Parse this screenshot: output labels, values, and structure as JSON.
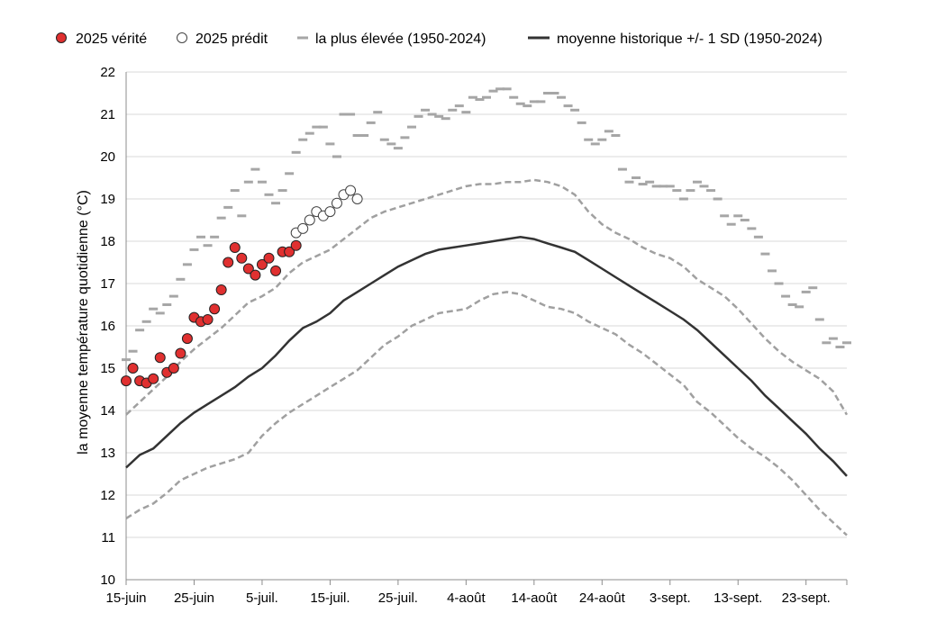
{
  "chart_data": {
    "type": "line",
    "title": "",
    "xlabel": "",
    "ylabel": "la moyenne température quotidienne (°C)",
    "ylim": [
      10,
      22
    ],
    "yticks": [
      10,
      11,
      12,
      13,
      14,
      15,
      16,
      17,
      18,
      19,
      20,
      21,
      22
    ],
    "x_range_days": [
      0,
      106
    ],
    "x_ticks": [
      {
        "day": 0,
        "label": "15-juin"
      },
      {
        "day": 10,
        "label": "25-juin"
      },
      {
        "day": 20,
        "label": "5-juil."
      },
      {
        "day": 30,
        "label": "15-juil."
      },
      {
        "day": 40,
        "label": "25-juil."
      },
      {
        "day": 50,
        "label": "4-août"
      },
      {
        "day": 60,
        "label": "14-août"
      },
      {
        "day": 70,
        "label": "24-août"
      },
      {
        "day": 80,
        "label": "3-sept."
      },
      {
        "day": 90,
        "label": "13-sept."
      },
      {
        "day": 100,
        "label": "23-sept."
      }
    ],
    "legend": [
      {
        "key": "truth",
        "label": "2025 vérité"
      },
      {
        "key": "predicted",
        "label": "2025 prédit"
      },
      {
        "key": "highest",
        "label": "la plus élevée (1950-2024)"
      },
      {
        "key": "mean",
        "label": "moyenne historique +/- 1 SD (1950-2024)"
      }
    ],
    "colors": {
      "truth": "#e03030",
      "mean": "#333333",
      "band": "#a0a0a0",
      "highest": "#a6a6a6",
      "grid": "#d9d9d9"
    },
    "series": {
      "truth": {
        "days": [
          0,
          1,
          2,
          3,
          4,
          5,
          6,
          7,
          8,
          9,
          10,
          11,
          12,
          13,
          14,
          15,
          16,
          17,
          18,
          19,
          20,
          21,
          22,
          23,
          24,
          25
        ],
        "values": [
          14.7,
          15.0,
          14.7,
          14.65,
          14.75,
          15.25,
          14.9,
          15.0,
          15.35,
          15.7,
          16.2,
          16.1,
          16.15,
          16.4,
          16.85,
          17.5,
          17.85,
          17.6,
          17.35,
          17.2,
          17.45,
          17.6,
          17.3,
          17.75,
          17.75,
          17.9
        ]
      },
      "predicted": {
        "days": [
          25,
          26,
          27,
          28,
          29,
          30,
          31,
          32,
          33,
          34
        ],
        "values": [
          18.2,
          18.3,
          18.5,
          18.7,
          18.6,
          18.7,
          18.9,
          19.1,
          19.2,
          19.0
        ]
      },
      "mean": {
        "days": [
          0,
          2,
          4,
          6,
          8,
          10,
          12,
          14,
          16,
          18,
          20,
          22,
          24,
          26,
          28,
          30,
          32,
          34,
          36,
          38,
          40,
          42,
          44,
          46,
          48,
          50,
          52,
          54,
          56,
          58,
          60,
          62,
          64,
          66,
          68,
          70,
          72,
          74,
          76,
          78,
          80,
          82,
          84,
          86,
          88,
          90,
          92,
          94,
          96,
          98,
          100,
          102,
          104,
          106
        ],
        "values": [
          12.65,
          12.95,
          13.1,
          13.4,
          13.7,
          13.95,
          14.15,
          14.35,
          14.55,
          14.8,
          15.0,
          15.3,
          15.65,
          15.95,
          16.1,
          16.3,
          16.6,
          16.8,
          17.0,
          17.2,
          17.4,
          17.55,
          17.7,
          17.8,
          17.85,
          17.9,
          17.95,
          18.0,
          18.05,
          18.1,
          18.05,
          17.95,
          17.85,
          17.75,
          17.55,
          17.35,
          17.15,
          16.95,
          16.75,
          16.55,
          16.35,
          16.15,
          15.9,
          15.6,
          15.3,
          15.0,
          14.7,
          14.35,
          14.05,
          13.75,
          13.45,
          13.1,
          12.8,
          12.45
        ]
      },
      "upper_sd": {
        "days": [
          0,
          2,
          4,
          6,
          8,
          10,
          12,
          14,
          16,
          18,
          20,
          22,
          24,
          26,
          28,
          30,
          32,
          34,
          36,
          38,
          40,
          42,
          44,
          46,
          48,
          50,
          52,
          54,
          56,
          58,
          60,
          62,
          64,
          66,
          68,
          70,
          72,
          74,
          76,
          78,
          80,
          82,
          84,
          86,
          88,
          90,
          92,
          94,
          96,
          98,
          100,
          102,
          104,
          106
        ],
        "values": [
          13.9,
          14.2,
          14.5,
          14.8,
          15.15,
          15.45,
          15.7,
          15.95,
          16.25,
          16.55,
          16.7,
          16.9,
          17.25,
          17.5,
          17.65,
          17.8,
          18.05,
          18.3,
          18.55,
          18.7,
          18.8,
          18.9,
          19.0,
          19.1,
          19.2,
          19.3,
          19.35,
          19.35,
          19.4,
          19.4,
          19.45,
          19.4,
          19.3,
          19.1,
          18.7,
          18.4,
          18.2,
          18.05,
          17.85,
          17.7,
          17.6,
          17.4,
          17.1,
          16.9,
          16.7,
          16.4,
          16.05,
          15.7,
          15.4,
          15.15,
          14.95,
          14.75,
          14.45,
          13.9
        ]
      },
      "lower_sd": {
        "days": [
          0,
          2,
          4,
          6,
          8,
          10,
          12,
          14,
          16,
          18,
          20,
          22,
          24,
          26,
          28,
          30,
          32,
          34,
          36,
          38,
          40,
          42,
          44,
          46,
          48,
          50,
          52,
          54,
          56,
          58,
          60,
          62,
          64,
          66,
          68,
          70,
          72,
          74,
          76,
          78,
          80,
          82,
          84,
          86,
          88,
          90,
          92,
          94,
          96,
          98,
          100,
          102,
          104,
          106
        ],
        "values": [
          11.45,
          11.65,
          11.8,
          12.05,
          12.35,
          12.5,
          12.65,
          12.75,
          12.85,
          13.0,
          13.4,
          13.7,
          13.95,
          14.15,
          14.35,
          14.55,
          14.75,
          14.95,
          15.25,
          15.55,
          15.75,
          16.0,
          16.15,
          16.3,
          16.35,
          16.4,
          16.6,
          16.75,
          16.8,
          16.75,
          16.6,
          16.45,
          16.4,
          16.3,
          16.1,
          15.95,
          15.8,
          15.55,
          15.35,
          15.1,
          14.85,
          14.6,
          14.2,
          13.95,
          13.65,
          13.35,
          13.1,
          12.9,
          12.65,
          12.35,
          12.0,
          11.65,
          11.35,
          11.05
        ]
      },
      "highest": {
        "days": [
          0,
          1,
          2,
          3,
          4,
          5,
          6,
          7,
          8,
          9,
          10,
          11,
          12,
          13,
          14,
          15,
          16,
          17,
          18,
          19,
          20,
          21,
          22,
          23,
          24,
          25,
          26,
          27,
          28,
          29,
          30,
          31,
          32,
          33,
          34,
          35,
          36,
          37,
          38,
          39,
          40,
          41,
          42,
          43,
          44,
          45,
          46,
          47,
          48,
          49,
          50,
          51,
          52,
          53,
          54,
          55,
          56,
          57,
          58,
          59,
          60,
          61,
          62,
          63,
          64,
          65,
          66,
          67,
          68,
          69,
          70,
          71,
          72,
          73,
          74,
          75,
          76,
          77,
          78,
          79,
          80,
          81,
          82,
          83,
          84,
          85,
          86,
          87,
          88,
          89,
          90,
          91,
          92,
          93,
          94,
          95,
          96,
          97,
          98,
          99,
          100,
          101,
          102,
          103,
          104,
          105,
          106
        ],
        "values": [
          15.2,
          15.4,
          15.9,
          16.1,
          16.4,
          16.3,
          16.5,
          16.7,
          17.1,
          17.45,
          17.8,
          18.1,
          17.9,
          18.1,
          18.55,
          18.8,
          19.2,
          18.6,
          19.4,
          19.7,
          19.4,
          19.1,
          18.9,
          19.2,
          19.6,
          20.1,
          20.4,
          20.55,
          20.7,
          20.7,
          20.3,
          20.0,
          21.0,
          21.0,
          20.5,
          20.5,
          20.8,
          21.05,
          20.4,
          20.3,
          20.2,
          20.45,
          20.7,
          20.95,
          21.1,
          21.0,
          20.95,
          20.9,
          21.1,
          21.2,
          21.05,
          21.4,
          21.35,
          21.4,
          21.55,
          21.6,
          21.6,
          21.4,
          21.25,
          21.2,
          21.3,
          21.3,
          21.5,
          21.5,
          21.4,
          21.2,
          21.1,
          20.8,
          20.4,
          20.3,
          20.4,
          20.6,
          20.5,
          19.7,
          19.4,
          19.5,
          19.35,
          19.4,
          19.3,
          19.3,
          19.3,
          19.2,
          19.0,
          19.2,
          19.4,
          19.3,
          19.2,
          19.0,
          18.6,
          18.4,
          18.6,
          18.5,
          18.3,
          18.1,
          17.7,
          17.3,
          17.0,
          16.7,
          16.5,
          16.45,
          16.8,
          16.9,
          16.15,
          15.6,
          15.7,
          15.5,
          15.6
        ]
      }
    }
  }
}
